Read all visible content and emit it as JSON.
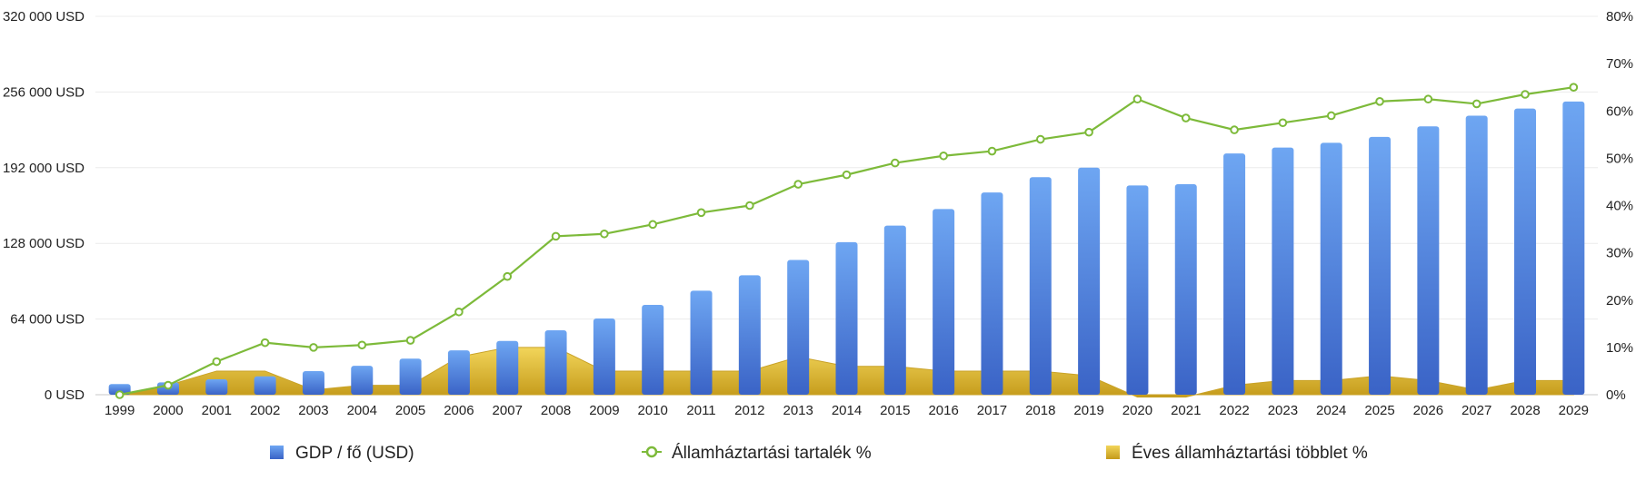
{
  "chart_data": {
    "type": "bar",
    "categories": [
      "1999",
      "2000",
      "2001",
      "2002",
      "2003",
      "2004",
      "2005",
      "2006",
      "2007",
      "2008",
      "2009",
      "2010",
      "2011",
      "2012",
      "2013",
      "2014",
      "2015",
      "2016",
      "2017",
      "2018",
      "2019",
      "2020",
      "2021",
      "2022",
      "2023",
      "2024",
      "2025",
      "2026",
      "2027",
      "2028",
      "2029"
    ],
    "y_left": {
      "ticks": [
        "0 USD",
        "64 000 USD",
        "128 000 USD",
        "192 000 USD",
        "256 000 USD",
        "320 000 USD"
      ],
      "ylim": [
        0,
        320000
      ]
    },
    "y_right": {
      "ticks": [
        "0%",
        "10%",
        "20%",
        "30%",
        "40%",
        "50%",
        "60%",
        "70%",
        "80%"
      ],
      "ylim": [
        0,
        80
      ]
    },
    "grid": true,
    "legend_position": "bottom",
    "series": [
      {
        "name": "GDP / fő (USD)",
        "type": "bar",
        "axis": "left",
        "color": "#4a7fd8",
        "values": [
          9000,
          10500,
          13000,
          15500,
          20000,
          24500,
          30500,
          37500,
          45500,
          54500,
          64500,
          76000,
          88000,
          101000,
          114000,
          129000,
          143000,
          157000,
          171000,
          184000,
          192000,
          177000,
          178000,
          204000,
          209000,
          213000,
          218000,
          227000,
          236000,
          242000,
          248000
        ]
      },
      {
        "name": "Államháztartási tartalék %",
        "type": "line",
        "axis": "right",
        "color": "#7dba3a",
        "values": [
          0,
          2,
          7,
          11,
          10,
          10.5,
          11.5,
          17.5,
          25,
          33.5,
          34,
          36,
          38.5,
          40,
          44.5,
          46.5,
          49,
          50.5,
          51.5,
          54,
          55.5,
          62.5,
          58.5,
          56,
          57.5,
          59,
          62,
          62.5,
          61.5,
          63.5,
          65
        ]
      },
      {
        "name": "Éves államháztartási többlet %",
        "type": "area",
        "axis": "right",
        "color": "#d4b13a",
        "values": [
          0,
          2,
          5,
          5,
          1,
          2,
          2,
          8,
          10,
          10,
          5,
          5,
          5,
          5,
          8,
          6,
          6,
          5,
          5,
          5,
          4,
          -0.5,
          -0.5,
          2,
          3,
          3,
          4,
          3,
          1,
          3,
          3
        ]
      }
    ]
  }
}
